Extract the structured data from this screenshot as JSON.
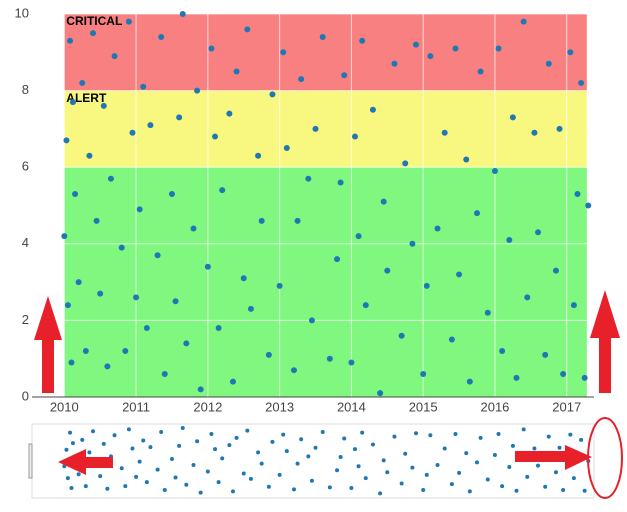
{
  "chart_data": {
    "type": "scatter",
    "x": [
      2010.0,
      2010.03,
      2010.05,
      2010.08,
      2010.1,
      2010.12,
      2010.15,
      2010.2,
      2010.25,
      2010.3,
      2010.35,
      2010.4,
      2010.45,
      2010.5,
      2010.55,
      2010.6,
      2010.65,
      2010.7,
      2010.8,
      2010.85,
      2010.9,
      2010.95,
      2011.0,
      2011.05,
      2011.1,
      2011.15,
      2011.2,
      2011.3,
      2011.35,
      2011.4,
      2011.5,
      2011.55,
      2011.6,
      2011.65,
      2011.7,
      2011.8,
      2011.85,
      2011.9,
      2012.0,
      2012.05,
      2012.1,
      2012.15,
      2012.2,
      2012.3,
      2012.35,
      2012.4,
      2012.5,
      2012.55,
      2012.6,
      2012.7,
      2012.75,
      2012.85,
      2012.9,
      2013.0,
      2013.05,
      2013.1,
      2013.2,
      2013.25,
      2013.3,
      2013.4,
      2013.45,
      2013.5,
      2013.6,
      2013.7,
      2013.8,
      2013.85,
      2013.9,
      2014.0,
      2014.05,
      2014.1,
      2014.15,
      2014.2,
      2014.3,
      2014.4,
      2014.45,
      2014.5,
      2014.6,
      2014.7,
      2014.75,
      2014.85,
      2014.9,
      2015.0,
      2015.05,
      2015.1,
      2015.2,
      2015.3,
      2015.4,
      2015.45,
      2015.5,
      2015.6,
      2015.65,
      2015.75,
      2015.8,
      2015.9,
      2016.0,
      2016.05,
      2016.1,
      2016.2,
      2016.25,
      2016.3,
      2016.4,
      2016.45,
      2016.55,
      2016.6,
      2016.7,
      2016.75,
      2016.85,
      2016.9,
      2016.95,
      2017.05,
      2017.1,
      2017.15,
      2017.2,
      2017.25,
      2017.3
    ],
    "series": [
      {
        "color": "#1f77b4",
        "values": [
          4.2,
          6.7,
          2.4,
          9.3,
          0.9,
          7.7,
          5.3,
          3.0,
          8.2,
          1.2,
          6.3,
          9.5,
          4.6,
          2.7,
          7.6,
          0.8,
          5.7,
          8.9,
          3.9,
          1.2,
          9.8,
          6.9,
          2.6,
          4.9,
          8.1,
          1.8,
          7.1,
          3.7,
          9.4,
          0.6,
          5.3,
          2.5,
          7.3,
          10.0,
          1.4,
          4.4,
          8.0,
          0.2,
          3.4,
          9.1,
          6.8,
          1.8,
          5.4,
          7.4,
          0.4,
          8.5,
          3.1,
          9.6,
          2.3,
          6.3,
          4.6,
          1.1,
          7.9,
          2.9,
          9.0,
          6.5,
          0.7,
          4.6,
          8.3,
          5.7,
          2.0,
          7.0,
          9.4,
          1.0,
          3.6,
          5.6,
          8.4,
          0.9,
          6.8,
          4.2,
          9.3,
          2.4,
          7.5,
          0.1,
          5.1,
          3.3,
          8.7,
          1.6,
          6.1,
          4.0,
          9.2,
          0.6,
          2.9,
          8.9,
          4.4,
          6.9,
          1.5,
          9.1,
          3.2,
          6.2,
          0.4,
          4.8,
          8.5,
          2.2,
          5.9,
          9.1,
          1.2,
          4.1,
          7.3,
          0.5,
          9.8,
          2.6,
          6.9,
          4.3,
          1.1,
          8.7,
          3.3,
          7.0,
          0.6,
          9.0,
          2.4,
          5.3,
          8.2,
          0.5,
          5.0
        ]
      }
    ],
    "bands": [
      {
        "from": 0,
        "to": 6,
        "color": "#80f880"
      },
      {
        "from": 6,
        "to": 8,
        "color": "#f8f880",
        "label": "ALERT"
      },
      {
        "from": 8,
        "to": 10,
        "color": "#f88080",
        "label": "CRITICAL"
      }
    ],
    "band_x": [
      2010,
      2017.28
    ],
    "xlim": [
      2009.55,
      2017.38
    ],
    "xticks": [
      2010,
      2011,
      2012,
      2013,
      2014,
      2015,
      2016,
      2017
    ],
    "ylim": [
      0,
      10
    ],
    "yticks": [
      0,
      2,
      4,
      6,
      8,
      10
    ],
    "grid": true,
    "range_slider": true
  }
}
